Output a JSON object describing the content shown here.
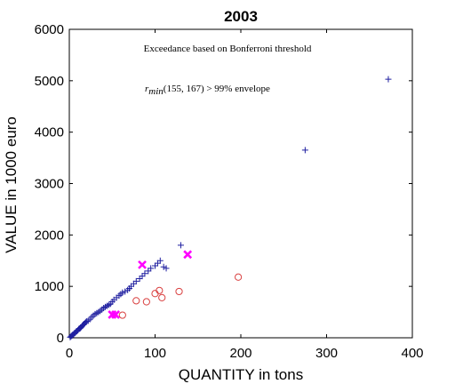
{
  "chart_data": {
    "type": "scatter",
    "title": "2003",
    "xlabel": "QUANTITY in tons",
    "ylabel": "VALUE in 1000 euro",
    "xlim": [
      0,
      400
    ],
    "ylim": [
      0,
      6000
    ],
    "xticks": [
      "0",
      "100",
      "200",
      "300",
      "400"
    ],
    "yticks": [
      "0",
      "1000",
      "2000",
      "3000",
      "4000",
      "5000",
      "6000"
    ],
    "grid": false,
    "annotations": {
      "line1": "Exceedance based on Bonferroni threshold",
      "line2_prefix": "r",
      "line2_subscript": "min",
      "line2_suffix": "(155, 167) > 99% envelope"
    },
    "series": [
      {
        "marker": "plus",
        "color": "#1f1fa0",
        "points": [
          [
            1,
            10
          ],
          [
            2,
            30
          ],
          [
            3,
            40
          ],
          [
            4,
            60
          ],
          [
            5,
            70
          ],
          [
            6,
            90
          ],
          [
            7,
            100
          ],
          [
            8,
            120
          ],
          [
            9,
            130
          ],
          [
            10,
            150
          ],
          [
            11,
            170
          ],
          [
            12,
            180
          ],
          [
            13,
            190
          ],
          [
            14,
            210
          ],
          [
            15,
            230
          ],
          [
            16,
            250
          ],
          [
            17,
            260
          ],
          [
            18,
            280
          ],
          [
            19,
            300
          ],
          [
            20,
            320
          ],
          [
            22,
            330
          ],
          [
            24,
            360
          ],
          [
            26,
            400
          ],
          [
            28,
            430
          ],
          [
            30,
            460
          ],
          [
            32,
            480
          ],
          [
            34,
            500
          ],
          [
            36,
            520
          ],
          [
            38,
            550
          ],
          [
            40,
            580
          ],
          [
            42,
            600
          ],
          [
            44,
            620
          ],
          [
            46,
            640
          ],
          [
            48,
            660
          ],
          [
            50,
            700
          ],
          [
            52,
            740
          ],
          [
            55,
            780
          ],
          [
            58,
            820
          ],
          [
            60,
            850
          ],
          [
            62,
            880
          ],
          [
            65,
            900
          ],
          [
            68,
            930
          ],
          [
            70,
            960
          ],
          [
            72,
            1000
          ],
          [
            75,
            1050
          ],
          [
            78,
            1100
          ],
          [
            82,
            1150
          ],
          [
            85,
            1200
          ],
          [
            88,
            1250
          ],
          [
            92,
            1300
          ],
          [
            95,
            1350
          ],
          [
            100,
            1400
          ],
          [
            103,
            1450
          ],
          [
            106,
            1500
          ],
          [
            110,
            1380
          ],
          [
            113,
            1350
          ],
          [
            130,
            1800
          ],
          [
            275,
            3650
          ],
          [
            372,
            5030
          ]
        ]
      },
      {
        "marker": "circle",
        "color": "#d94040",
        "points": [
          [
            62,
            440
          ],
          [
            78,
            720
          ],
          [
            90,
            700
          ],
          [
            100,
            860
          ],
          [
            105,
            920
          ],
          [
            108,
            780
          ],
          [
            128,
            900
          ],
          [
            197,
            1180
          ]
        ]
      },
      {
        "marker": "x",
        "color": "#ff00ff",
        "points": [
          [
            50,
            450
          ],
          [
            54,
            450
          ],
          [
            85,
            1420
          ],
          [
            138,
            1620
          ]
        ]
      }
    ]
  }
}
